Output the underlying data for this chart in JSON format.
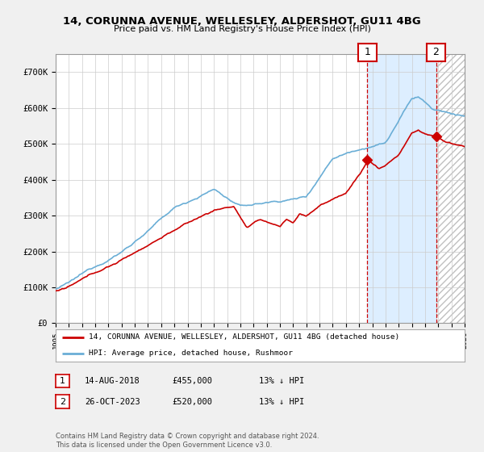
{
  "title": "14, CORUNNA AVENUE, WELLESLEY, ALDERSHOT, GU11 4BG",
  "subtitle": "Price paid vs. HM Land Registry's House Price Index (HPI)",
  "legend_line1": "14, CORUNNA AVENUE, WELLESLEY, ALDERSHOT, GU11 4BG (detached house)",
  "legend_line2": "HPI: Average price, detached house, Rushmoor",
  "annotation1_label": "1",
  "annotation1_date": "14-AUG-2018",
  "annotation1_price": "£455,000",
  "annotation1_hpi": "13% ↓ HPI",
  "annotation2_label": "2",
  "annotation2_date": "26-OCT-2023",
  "annotation2_price": "£520,000",
  "annotation2_hpi": "13% ↓ HPI",
  "footer": "Contains HM Land Registry data © Crown copyright and database right 2024.\nThis data is licensed under the Open Government Licence v3.0.",
  "ylim": [
    0,
    750000
  ],
  "yticks": [
    0,
    100000,
    200000,
    300000,
    400000,
    500000,
    600000,
    700000
  ],
  "ytick_labels": [
    "£0",
    "£100K",
    "£200K",
    "£300K",
    "£400K",
    "£500K",
    "£600K",
    "£700K"
  ],
  "hpi_color": "#6aaed6",
  "price_color": "#cc0000",
  "background_color": "#f0f0f0",
  "plot_bg_color": "#ffffff",
  "grid_color": "#cccccc",
  "annotation_color": "#cc0000",
  "highlight_color": "#ddeeff",
  "ann1_x": 2018.62,
  "ann1_y": 455000,
  "ann2_x": 2023.83,
  "ann2_y": 520000,
  "hatch_start": 2023.83,
  "xlim_start": 1995,
  "xlim_end": 2026
}
